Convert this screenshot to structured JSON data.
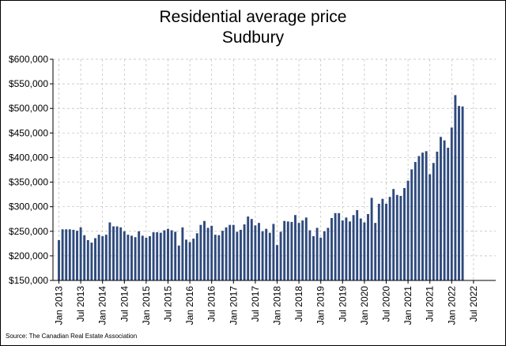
{
  "chart_data": {
    "type": "bar",
    "title": "Residential average price",
    "subtitle": "Sudbury",
    "xlabel": "",
    "ylabel": "",
    "ylim": [
      150000,
      600000
    ],
    "y_ticks": [
      150000,
      200000,
      250000,
      300000,
      350000,
      400000,
      450000,
      500000,
      550000,
      600000
    ],
    "y_tick_labels": [
      "$150,000",
      "$200,000",
      "$250,000",
      "$300,000",
      "$350,000",
      "$400,000",
      "$450,000",
      "$500,000",
      "$550,000",
      "$600,000"
    ],
    "x_tick_labels": [
      "Jan 2013",
      "Jul 2013",
      "Jan 2014",
      "Jul 2014",
      "Jan 2015",
      "Jul 2015",
      "Jan 2016",
      "Jul 2016",
      "Jan 2017",
      "Jul 2017",
      "Jan 2018",
      "Jul 2018",
      "Jan 2019",
      "Jul 2019",
      "Jan 2020",
      "Jul 2020",
      "Jan 2021",
      "Jul 2021",
      "Jan 2022",
      "Jul 2022"
    ],
    "start_month": "Jan 2013",
    "grid": true,
    "bar_color": "#2e4a7d",
    "values": [
      232000,
      254000,
      254000,
      254000,
      253000,
      251000,
      258000,
      242000,
      232000,
      227000,
      236000,
      243000,
      240000,
      243000,
      268000,
      260000,
      260000,
      258000,
      250000,
      243000,
      241000,
      238000,
      250000,
      241000,
      237000,
      240000,
      248000,
      248000,
      247000,
      252000,
      255000,
      252000,
      249000,
      221000,
      258000,
      233000,
      228000,
      235000,
      246000,
      263000,
      271000,
      257000,
      261000,
      243000,
      242000,
      251000,
      258000,
      263000,
      263000,
      249000,
      253000,
      264000,
      280000,
      275000,
      262000,
      267000,
      250000,
      255000,
      247000,
      265000,
      222000,
      249000,
      271000,
      270000,
      269000,
      283000,
      267000,
      272000,
      278000,
      252000,
      240000,
      257000,
      237000,
      250000,
      257000,
      277000,
      287000,
      287000,
      272000,
      278000,
      270000,
      283000,
      293000,
      276000,
      268000,
      285000,
      318000,
      267000,
      306000,
      316000,
      306000,
      320000,
      336000,
      324000,
      322000,
      338000,
      353000,
      376000,
      391000,
      403000,
      410000,
      413000,
      366000,
      389000,
      412000,
      442000,
      435000,
      420000,
      461000,
      527000,
      505000,
      504000
    ]
  },
  "source": "Source: The Canadian Real Estate Association"
}
